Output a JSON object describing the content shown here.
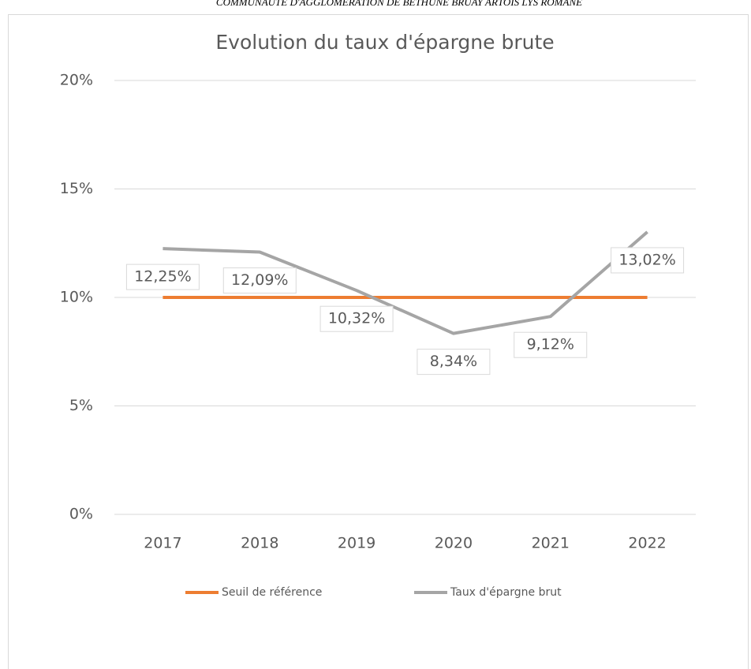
{
  "header": "COMMUNAUTE D'AGGLOMERATION DE BETHUNE BRUAY ARTOIS LYS ROMANE",
  "chart_data": {
    "type": "line",
    "title": "Evolution du taux d'épargne brute",
    "categories": [
      "2017",
      "2018",
      "2019",
      "2020",
      "2021",
      "2022"
    ],
    "series": [
      {
        "name": "Seuil de référence",
        "color": "#ed7d31",
        "values": [
          10,
          10,
          10,
          10,
          10,
          10
        ]
      },
      {
        "name": "Taux d'épargne brut",
        "color": "#a5a5a5",
        "values": [
          12.25,
          12.09,
          10.32,
          8.34,
          9.12,
          13.02
        ],
        "value_labels": [
          "12,25%",
          "12,09%",
          "10,32%",
          "8,34%",
          "9,12%",
          "13,02%"
        ]
      }
    ],
    "ylim": [
      0,
      20
    ],
    "yticks": [
      {
        "value": 0,
        "label": "0%"
      },
      {
        "value": 5,
        "label": "5%"
      },
      {
        "value": 10,
        "label": "10%"
      },
      {
        "value": 15,
        "label": "15%"
      },
      {
        "value": 20,
        "label": "20%"
      }
    ],
    "grid": true,
    "legend": "bottom"
  }
}
